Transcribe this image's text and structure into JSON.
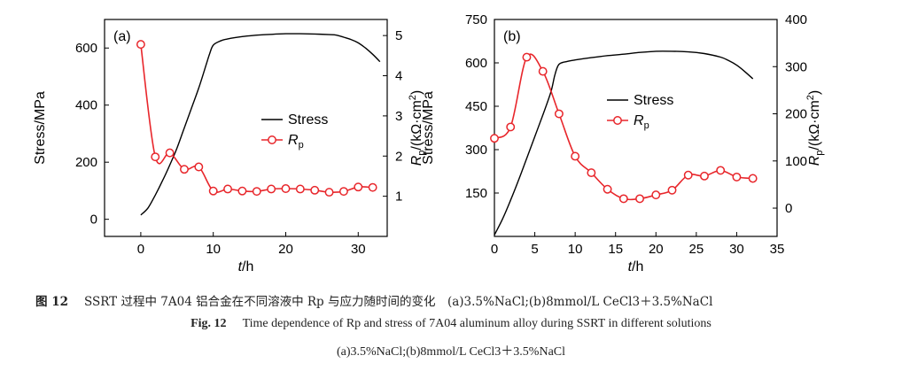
{
  "chart_data": [
    {
      "type": "line",
      "panel_label": "(a)",
      "xlabel_italic": "t",
      "xlabel_unit": "/h",
      "ylabel": "Stress/MPa",
      "y2label_symbol": "R",
      "y2label_sub": "p",
      "y2label_unit": "/(kΩ·cm",
      "y2label_sup": "2",
      "y2label_close": ")",
      "xlim": [
        -5,
        34
      ],
      "ylim": [
        -60,
        700
      ],
      "y2lim": [
        0.0,
        5.4
      ],
      "xticks": [
        0,
        10,
        20,
        30
      ],
      "yticks": [
        0,
        200,
        400,
        600
      ],
      "y2ticks": [
        1,
        2,
        3,
        4,
        5
      ],
      "legend": {
        "position": "center-right",
        "stress_label": "Stress",
        "rp_symbol": "R",
        "rp_sub": "p"
      },
      "series": [
        {
          "name": "Stress",
          "axis": "left",
          "color": "#000000",
          "x": [
            0,
            1,
            2,
            3,
            4,
            5,
            6,
            7,
            8,
            9,
            9.5,
            10,
            11,
            12,
            14,
            16,
            18,
            20,
            22,
            24,
            26,
            27,
            28,
            29,
            30,
            31,
            32,
            33
          ],
          "y": [
            15,
            40,
            85,
            135,
            190,
            250,
            320,
            390,
            460,
            540,
            580,
            610,
            625,
            632,
            640,
            645,
            648,
            650,
            650,
            649,
            647,
            645,
            638,
            630,
            618,
            600,
            578,
            552
          ]
        },
        {
          "name": "Rp",
          "axis": "right",
          "color": "#e8262b",
          "x": [
            0,
            2,
            4,
            6,
            8,
            10,
            12,
            14,
            16,
            18,
            20,
            22,
            24,
            26,
            28,
            30,
            32
          ],
          "y": [
            4.78,
            1.98,
            2.08,
            1.67,
            1.73,
            1.13,
            1.18,
            1.13,
            1.12,
            1.18,
            1.19,
            1.18,
            1.15,
            1.1,
            1.12,
            1.23,
            1.22
          ]
        }
      ]
    },
    {
      "type": "line",
      "panel_label": "(b)",
      "xlabel_italic": "t",
      "xlabel_unit": "/h",
      "ylabel": "Stress/MPa",
      "y2label_symbol": "R",
      "y2label_sub": "p",
      "y2label_unit": "/(kΩ·cm",
      "y2label_sup": "2",
      "y2label_close": ")",
      "xlim": [
        0,
        35
      ],
      "ylim": [
        0,
        750
      ],
      "y2lim": [
        -60,
        400
      ],
      "xticks": [
        0,
        5,
        10,
        15,
        20,
        25,
        30,
        35
      ],
      "yticks": [
        150,
        300,
        450,
        600,
        750
      ],
      "y2ticks": [
        0,
        100,
        200,
        300,
        400
      ],
      "legend": {
        "position": "center-right",
        "stress_label": "Stress",
        "rp_symbol": "R",
        "rp_sub": "p"
      },
      "series": [
        {
          "name": "Stress",
          "axis": "left",
          "color": "#000000",
          "x": [
            0,
            1,
            2,
            3,
            4,
            5,
            6,
            7,
            7.5,
            8,
            9,
            10,
            12,
            14,
            16,
            18,
            20,
            22,
            24,
            26,
            28,
            29,
            30,
            31,
            32
          ],
          "y": [
            5,
            60,
            125,
            195,
            270,
            345,
            420,
            500,
            560,
            595,
            605,
            610,
            618,
            625,
            630,
            636,
            640,
            640,
            638,
            632,
            620,
            608,
            592,
            570,
            545
          ]
        },
        {
          "name": "Rp",
          "axis": "right",
          "color": "#e8262b",
          "x": [
            0,
            2,
            4,
            6,
            8,
            10,
            12,
            14,
            16,
            18,
            20,
            22,
            24,
            26,
            28,
            30,
            32
          ],
          "y": [
            148,
            172,
            320,
            290,
            200,
            110,
            75,
            40,
            20,
            20,
            28,
            38,
            70,
            68,
            80,
            66,
            63
          ]
        }
      ]
    }
  ],
  "caption": {
    "cn_lead": "图 12",
    "cn_text": "SSRT 过程中 7A04 铝合金在不同溶液中 Rp 与应力随时间的变化　(a)3.5%NaCl;(b)8mmol/L CeCl3＋3.5%NaCl",
    "en_lead": "Fig. 12",
    "en_line1": "Time dependence of Rp and stress of 7A04 aluminum alloy during SSRT in different solutions",
    "en_line2": "(a)3.5%NaCl;(b)8mmol/L CeCl3＋3.5%NaCl"
  }
}
